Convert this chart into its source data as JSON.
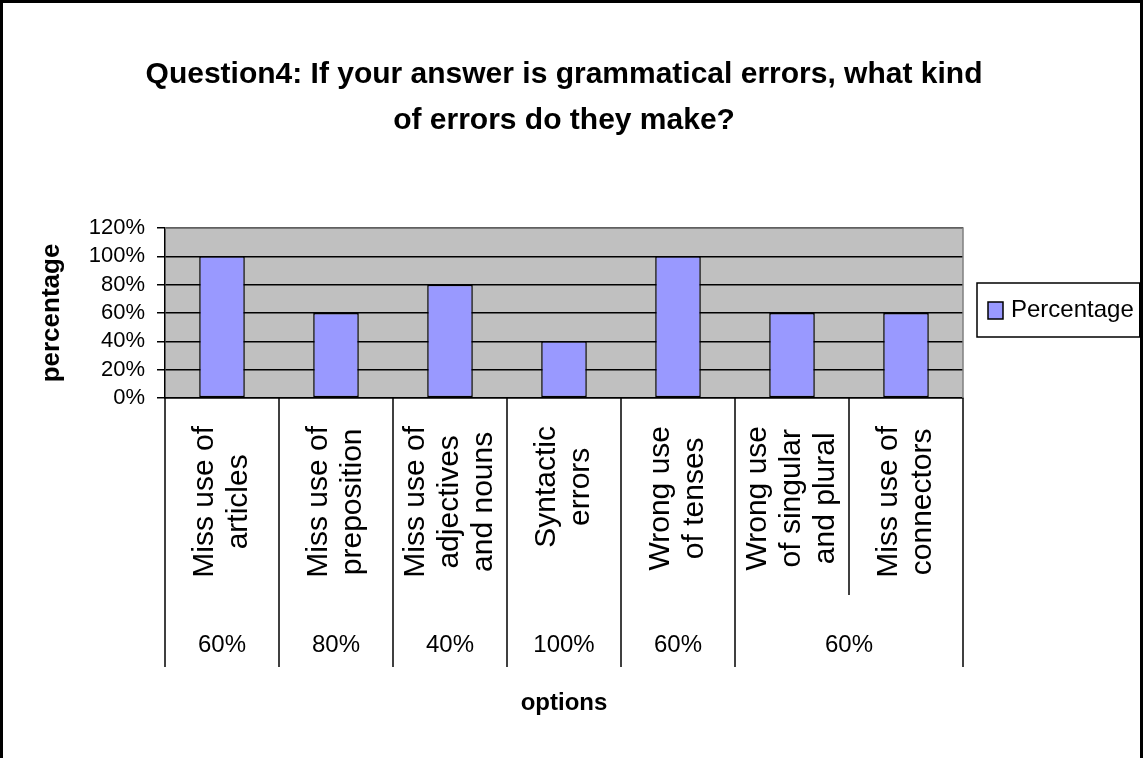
{
  "chart_data": {
    "type": "bar",
    "title": "Question4: If your answer is grammatical errors, what kind of errors do they make?",
    "xlabel": "options",
    "ylabel": "percentage",
    "categories": [
      "Miss use of articles",
      "Miss use of preposition",
      "Miss use of adjectives and nouns",
      "Syntactic errors",
      "Wrong use of tenses",
      "Wrong use of singular and plural",
      "Miss use of connectors"
    ],
    "series": [
      {
        "name": "Percentage",
        "color": "#9999ff",
        "values": [
          100,
          60,
          80,
          40,
          100,
          60,
          60
        ]
      }
    ],
    "ylim": [
      0,
      120
    ],
    "yticks": [
      {
        "value": 0,
        "label": "0%"
      },
      {
        "value": 20,
        "label": "20%"
      },
      {
        "value": 40,
        "label": "40%"
      },
      {
        "value": 60,
        "label": "60%"
      },
      {
        "value": 80,
        "label": "80%"
      },
      {
        "value": 100,
        "label": "100%"
      },
      {
        "value": 120,
        "label": "120%"
      }
    ],
    "grid": "y",
    "legend": "right",
    "annotations": [
      "60%",
      "80%",
      "40%",
      "100%",
      "60%",
      "60%"
    ]
  }
}
